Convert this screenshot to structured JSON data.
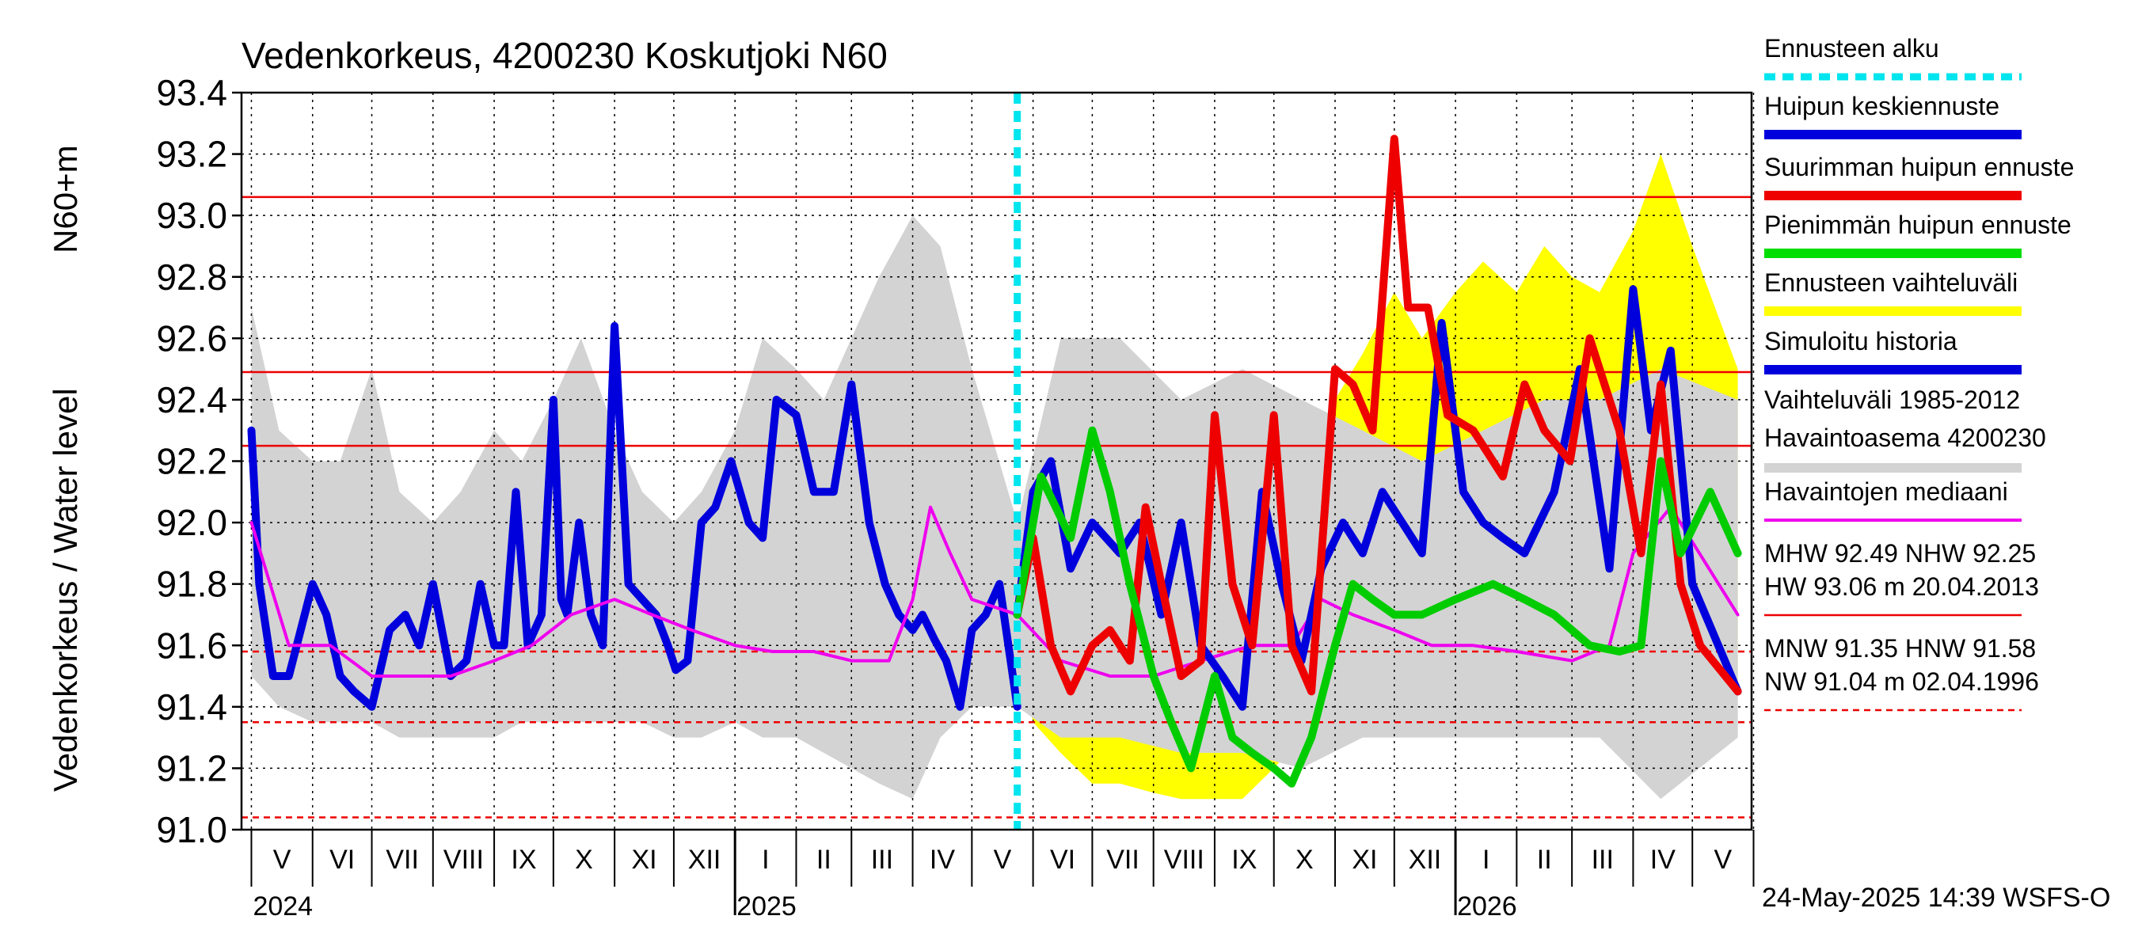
{
  "chart_data": {
    "type": "line",
    "title": "Vedenkorkeus, 4200230 Koskutjoki N60",
    "ylabel_left": "Vedenkorkeus / Water level",
    "ylabel_right": "N60+m",
    "ylim": [
      91.0,
      93.4
    ],
    "yticks": [
      "93.4",
      "93.2",
      "93.0",
      "92.8",
      "92.6",
      "92.4",
      "92.2",
      "92.0",
      "91.8",
      "91.6",
      "91.4",
      "91.2",
      "91.0"
    ],
    "month_labels": [
      "V",
      "VI",
      "VII",
      "VIII",
      "IX",
      "X",
      "XI",
      "XII",
      "I",
      "II",
      "III",
      "IV",
      "V",
      "VI",
      "VII",
      "VIII",
      "IX",
      "X",
      "XI",
      "XII",
      "I",
      "II",
      "III",
      "IV",
      "V"
    ],
    "year_labels": [
      "2024",
      "2025",
      "2026"
    ],
    "forecast_start_date": "2025-05-24",
    "reference_lines": [
      {
        "name": "HW",
        "value": 93.06,
        "style": "solid"
      },
      {
        "name": "MHW",
        "value": 92.49,
        "style": "solid"
      },
      {
        "name": "NHW",
        "value": 92.25,
        "style": "solid"
      },
      {
        "name": "HNW",
        "value": 91.58,
        "style": "dashed"
      },
      {
        "name": "MNW",
        "value": 91.35,
        "style": "dashed"
      },
      {
        "name": "NW",
        "value": 91.04,
        "style": "dashed"
      }
    ],
    "series": [
      {
        "name": "Simuloitu historia",
        "color": "#0000dd",
        "x": [
          "2024-05-01",
          "2024-05-05",
          "2024-05-12",
          "2024-05-20",
          "2024-06-01",
          "2024-06-08",
          "2024-06-15",
          "2024-06-22",
          "2024-07-01",
          "2024-07-10",
          "2024-07-18",
          "2024-07-25",
          "2024-08-01",
          "2024-08-10",
          "2024-08-18",
          "2024-08-25",
          "2024-09-01",
          "2024-09-06",
          "2024-09-12",
          "2024-09-18",
          "2024-09-25",
          "2024-10-01",
          "2024-10-05",
          "2024-10-08",
          "2024-10-14",
          "2024-10-20",
          "2024-10-26",
          "2024-11-01",
          "2024-11-08",
          "2024-11-15",
          "2024-11-22",
          "2024-11-28",
          "2024-12-02",
          "2024-12-08",
          "2024-12-15",
          "2024-12-22",
          "2024-12-30",
          "2025-01-08",
          "2025-01-15",
          "2025-01-22",
          "2025-02-01",
          "2025-02-10",
          "2025-02-20",
          "2025-03-01",
          "2025-03-10",
          "2025-03-18",
          "2025-03-25",
          "2025-04-01",
          "2025-04-06",
          "2025-04-12",
          "2025-04-18",
          "2025-04-25",
          "2025-05-01",
          "2025-05-08",
          "2025-05-15",
          "2025-05-24"
        ],
        "y": [
          92.3,
          91.8,
          91.5,
          91.5,
          91.8,
          91.7,
          91.5,
          91.45,
          91.4,
          91.65,
          91.7,
          91.6,
          91.8,
          91.5,
          91.55,
          91.8,
          91.6,
          91.6,
          92.1,
          91.6,
          91.7,
          92.4,
          91.75,
          91.7,
          92.0,
          91.7,
          91.6,
          92.64,
          91.8,
          91.75,
          91.7,
          91.6,
          91.52,
          91.55,
          92.0,
          92.05,
          92.2,
          92.0,
          91.95,
          92.4,
          92.35,
          92.1,
          92.1,
          92.45,
          92.0,
          91.8,
          91.7,
          91.65,
          91.7,
          91.62,
          91.55,
          91.4,
          91.65,
          91.7,
          91.8,
          91.4
        ]
      },
      {
        "name": "Havaintojen mediaani",
        "color": "#ee00ee",
        "x": [
          "2024-05-01",
          "2024-05-20",
          "2024-06-10",
          "2024-07-01",
          "2024-07-20",
          "2024-08-10",
          "2024-09-01",
          "2024-09-20",
          "2024-10-10",
          "2024-11-01",
          "2024-11-20",
          "2024-12-10",
          "2025-01-01",
          "2025-01-20",
          "2025-02-10",
          "2025-03-01",
          "2025-03-20",
          "2025-04-01",
          "2025-04-10",
          "2025-04-20",
          "2025-05-01",
          "2025-05-24",
          "2025-06-15",
          "2025-07-10",
          "2025-08-01",
          "2025-08-25",
          "2025-09-20",
          "2025-10-10",
          "2025-10-25",
          "2025-11-10",
          "2025-12-01",
          "2025-12-20",
          "2026-01-10",
          "2026-02-01",
          "2026-03-01",
          "2026-03-20",
          "2026-04-01",
          "2026-04-20",
          "2026-05-24"
        ],
        "y": [
          92.0,
          91.6,
          91.6,
          91.5,
          91.5,
          91.5,
          91.55,
          91.6,
          91.7,
          91.75,
          91.7,
          91.65,
          91.6,
          91.58,
          91.58,
          91.55,
          91.55,
          91.75,
          92.05,
          91.9,
          91.75,
          91.7,
          91.55,
          91.5,
          91.5,
          91.55,
          91.6,
          91.6,
          91.75,
          91.7,
          91.65,
          91.6,
          91.6,
          91.58,
          91.55,
          91.6,
          91.9,
          92.05,
          91.7
        ]
      },
      {
        "name": "Huipun keskiennuste",
        "color": "#0000dd",
        "x": [
          "2025-05-24",
          "2025-06-01",
          "2025-06-10",
          "2025-06-20",
          "2025-07-01",
          "2025-07-15",
          "2025-07-25",
          "2025-08-05",
          "2025-08-15",
          "2025-08-25",
          "2025-09-05",
          "2025-09-15",
          "2025-09-25",
          "2025-10-05",
          "2025-10-15",
          "2025-10-25",
          "2025-11-05",
          "2025-11-15",
          "2025-11-25",
          "2025-12-05",
          "2025-12-15",
          "2025-12-25",
          "2026-01-05",
          "2026-01-15",
          "2026-01-25",
          "2026-02-05",
          "2026-02-20",
          "2026-03-05",
          "2026-03-20",
          "2026-04-01",
          "2026-04-10",
          "2026-04-20",
          "2026-05-01",
          "2026-05-24"
        ],
        "y": [
          91.7,
          92.1,
          92.2,
          91.85,
          92.0,
          91.9,
          92.0,
          91.7,
          92.0,
          91.6,
          91.5,
          91.4,
          92.1,
          91.8,
          91.55,
          91.85,
          92.0,
          91.9,
          92.1,
          92.0,
          91.9,
          92.65,
          92.1,
          92.0,
          91.95,
          91.9,
          92.1,
          92.5,
          91.85,
          92.76,
          92.3,
          92.56,
          91.8,
          91.45
        ]
      },
      {
        "name": "Suurimman huipun ennuste",
        "color": "#ee0000",
        "x": [
          "2025-05-24",
          "2025-06-01",
          "2025-06-10",
          "2025-06-20",
          "2025-07-01",
          "2025-07-10",
          "2025-07-20",
          "2025-07-28",
          "2025-08-05",
          "2025-08-15",
          "2025-08-25",
          "2025-09-01",
          "2025-09-10",
          "2025-09-20",
          "2025-10-01",
          "2025-10-10",
          "2025-10-20",
          "2025-11-01",
          "2025-11-10",
          "2025-11-20",
          "2025-12-01",
          "2025-12-08",
          "2025-12-18",
          "2025-12-28",
          "2026-01-10",
          "2026-01-25",
          "2026-02-05",
          "2026-02-15",
          "2026-02-28",
          "2026-03-10",
          "2026-03-25",
          "2026-04-05",
          "2026-04-15",
          "2026-04-25",
          "2026-05-05",
          "2026-05-24"
        ],
        "y": [
          91.7,
          91.95,
          91.6,
          91.45,
          91.6,
          91.65,
          91.55,
          92.05,
          91.8,
          91.5,
          91.55,
          92.35,
          91.8,
          91.6,
          92.35,
          91.6,
          91.45,
          92.5,
          92.45,
          92.3,
          93.25,
          92.7,
          92.7,
          92.35,
          92.3,
          92.15,
          92.45,
          92.3,
          92.2,
          92.6,
          92.3,
          91.9,
          92.45,
          91.8,
          91.6,
          91.45
        ]
      },
      {
        "name": "Pienimmän huipun ennuste",
        "color": "#00cc00",
        "x": [
          "2025-05-24",
          "2025-06-05",
          "2025-06-20",
          "2025-07-01",
          "2025-07-10",
          "2025-07-20",
          "2025-08-01",
          "2025-08-10",
          "2025-08-20",
          "2025-09-01",
          "2025-09-10",
          "2025-09-20",
          "2025-10-01",
          "2025-10-10",
          "2025-10-20",
          "2025-11-01",
          "2025-11-10",
          "2025-11-20",
          "2025-12-01",
          "2025-12-15",
          "2026-01-01",
          "2026-01-20",
          "2026-02-05",
          "2026-02-20",
          "2026-03-10",
          "2026-03-25",
          "2026-04-05",
          "2026-04-15",
          "2026-04-25",
          "2026-05-10",
          "2026-05-24"
        ],
        "y": [
          91.7,
          92.15,
          91.95,
          92.3,
          92.1,
          91.8,
          91.5,
          91.35,
          91.2,
          91.5,
          91.3,
          91.25,
          91.2,
          91.15,
          91.3,
          91.6,
          91.8,
          91.75,
          91.7,
          91.7,
          91.75,
          91.8,
          91.75,
          91.7,
          91.6,
          91.58,
          91.6,
          92.2,
          91.9,
          92.1,
          91.9
        ]
      }
    ],
    "bands": [
      {
        "name": "Ennusteen vaihteluväli",
        "color": "#ffff00",
        "x": [
          "2025-05-24",
          "2025-06-01",
          "2025-06-15",
          "2025-07-01",
          "2025-07-15",
          "2025-08-01",
          "2025-08-15",
          "2025-09-01",
          "2025-09-15",
          "2025-10-01",
          "2025-10-15",
          "2025-11-01",
          "2025-11-15",
          "2025-12-01",
          "2025-12-15",
          "2026-01-01",
          "2026-01-15",
          "2026-02-01",
          "2026-02-15",
          "2026-03-01",
          "2026-03-15",
          "2026-04-01",
          "2026-04-15",
          "2026-05-01",
          "2026-05-24"
        ],
        "upper": [
          91.7,
          92.2,
          92.3,
          92.4,
          92.2,
          92.3,
          92.2,
          92.3,
          92.4,
          92.4,
          92.1,
          92.4,
          92.55,
          92.75,
          92.6,
          92.75,
          92.85,
          92.75,
          92.9,
          92.8,
          92.75,
          92.95,
          93.2,
          92.9,
          92.5
        ],
        "lower": [
          91.6,
          91.35,
          91.25,
          91.15,
          91.15,
          91.12,
          91.1,
          91.1,
          91.1,
          91.2,
          91.3,
          91.35,
          91.4,
          91.45,
          91.5,
          91.5,
          91.5,
          91.45,
          91.5,
          91.5,
          91.55,
          91.55,
          91.6,
          91.5,
          91.45
        ]
      },
      {
        "name": "Vaihteluväli 1985-2012 Havaintoasema 4200230",
        "color": "#d3d3d3",
        "x": [
          "2024-05-01",
          "2024-05-15",
          "2024-06-01",
          "2024-06-15",
          "2024-07-01",
          "2024-07-15",
          "2024-08-01",
          "2024-08-15",
          "2024-09-01",
          "2024-09-15",
          "2024-10-01",
          "2024-10-15",
          "2024-11-01",
          "2024-11-15",
          "2024-12-01",
          "2024-12-15",
          "2025-01-01",
          "2025-01-15",
          "2025-02-01",
          "2025-02-15",
          "2025-03-01",
          "2025-03-15",
          "2025-04-01",
          "2025-04-15",
          "2025-05-01",
          "2025-05-24",
          "2025-06-15",
          "2025-07-15",
          "2025-08-15",
          "2025-09-15",
          "2025-10-15",
          "2025-11-15",
          "2025-12-15",
          "2026-01-15",
          "2026-02-15",
          "2026-03-15",
          "2026-04-15",
          "2026-05-24"
        ],
        "upper": [
          92.7,
          92.3,
          92.2,
          92.2,
          92.5,
          92.1,
          92.0,
          92.1,
          92.3,
          92.2,
          92.4,
          92.6,
          92.3,
          92.1,
          92.0,
          92.1,
          92.3,
          92.6,
          92.5,
          92.4,
          92.6,
          92.8,
          93.0,
          92.9,
          92.5,
          92.0,
          92.6,
          92.6,
          92.4,
          92.5,
          92.4,
          92.3,
          92.2,
          92.3,
          92.4,
          92.4,
          92.5,
          92.4
        ],
        "lower": [
          91.5,
          91.4,
          91.35,
          91.35,
          91.35,
          91.3,
          91.3,
          91.3,
          91.3,
          91.35,
          91.35,
          91.35,
          91.35,
          91.35,
          91.3,
          91.3,
          91.35,
          91.3,
          91.3,
          91.25,
          91.2,
          91.15,
          91.1,
          91.3,
          91.4,
          91.4,
          91.3,
          91.3,
          91.25,
          91.25,
          91.2,
          91.3,
          91.3,
          91.3,
          91.3,
          91.3,
          91.1,
          91.3
        ]
      }
    ],
    "legend": {
      "placement": "right",
      "items": [
        {
          "label": "Ennusteen alku",
          "color": "#00e5ee",
          "style": "dotted"
        },
        {
          "label": "Huipun keskiennuste",
          "color": "#0000dd",
          "style": "solid"
        },
        {
          "label": "Suurimman huipun ennuste",
          "color": "#ee0000",
          "style": "solid"
        },
        {
          "label": "Pienimmän huipun ennuste",
          "color": "#00dd00",
          "style": "solid"
        },
        {
          "label": "Ennusteen vaihteluväli",
          "color": "#ffff00",
          "style": "solid"
        },
        {
          "label": "Simuloitu historia",
          "color": "#0000dd",
          "style": "solid"
        },
        {
          "label": "Vaihteluväli 1985-2012",
          "label2": " Havaintoasema 4200230",
          "color": "#d3d3d3",
          "style": "solid"
        },
        {
          "label": "Havaintojen mediaani",
          "color": "#ee00ee",
          "style": "thin"
        }
      ]
    },
    "stats": [
      {
        "line": "MHW  92.49 NHW  92.25",
        "color": "#ee0000",
        "style": "solid"
      },
      {
        "line": "HW  93.06 m 20.04.2013",
        "color": "#ee0000",
        "style": "solid"
      },
      {
        "line": "MNW  91.35 HNW  91.58",
        "color": "#ee0000",
        "style": "dashed"
      },
      {
        "line": "NW  91.04 m 02.04.1996",
        "color": "#ee0000",
        "style": "dashed"
      }
    ],
    "footer": "24-May-2025 14:39 WSFS-O"
  }
}
